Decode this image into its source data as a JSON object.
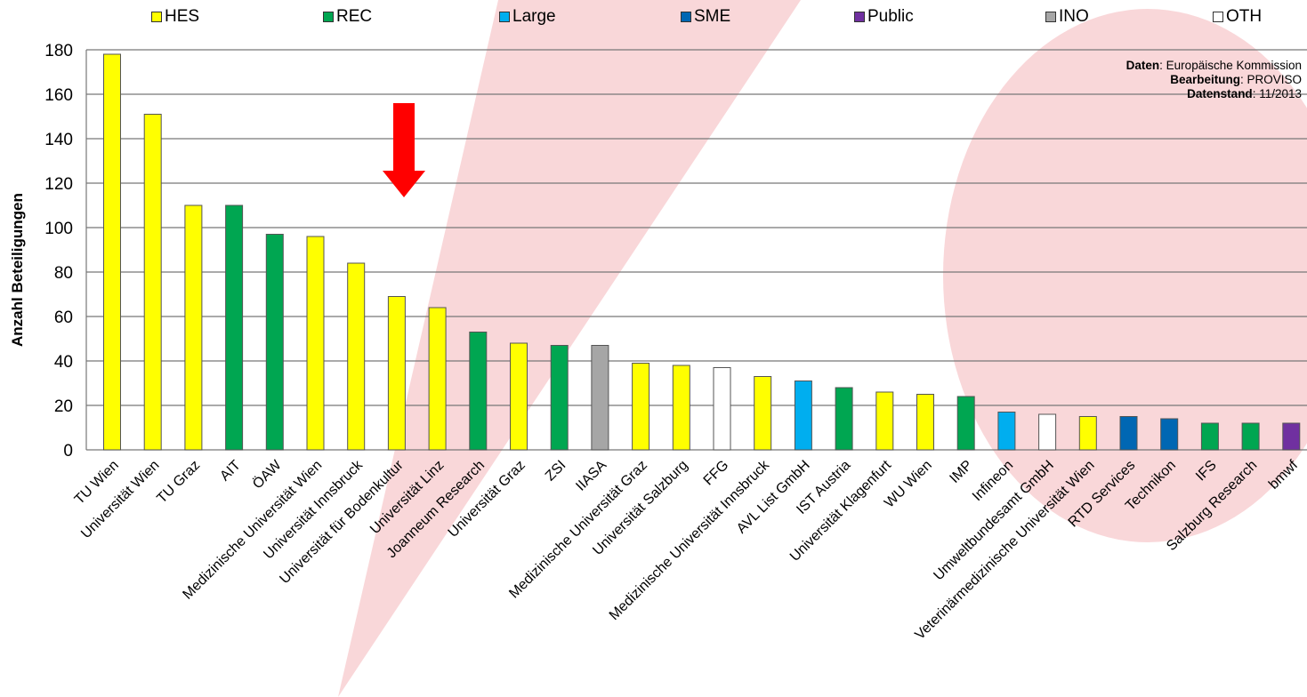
{
  "colors": {
    "HES": "#ffff00",
    "REC": "#00a651",
    "Large": "#00aeef",
    "SME": "#0067b3",
    "Public": "#7030a0",
    "INO": "#a6a6a6",
    "OTH": "#ffffff",
    "arrow": "#ff0000",
    "background_shape": "#f9d7d9"
  },
  "legend": [
    {
      "key": "HES",
      "label": "HES"
    },
    {
      "key": "REC",
      "label": "REC"
    },
    {
      "key": "Large",
      "label": "Large"
    },
    {
      "key": "SME",
      "label": "SME"
    },
    {
      "key": "Public",
      "label": "Public"
    },
    {
      "key": "INO",
      "label": "INO"
    },
    {
      "key": "OTH",
      "label": "OTH"
    }
  ],
  "source": {
    "data_label": "Daten",
    "data_value": ": Europäische Kommission",
    "edit_label": "Bearbeitung",
    "edit_value": ": PROVISO",
    "date_label": "Datenstand",
    "date_value": ": 11/2013"
  },
  "chart_data": {
    "type": "bar",
    "title": "",
    "xlabel": "",
    "ylabel": "Anzahl Beteiligungen",
    "ylim": [
      0,
      180
    ],
    "yticks": [
      0,
      20,
      40,
      60,
      80,
      100,
      120,
      140,
      160,
      180
    ],
    "grid": true,
    "legend_position": "top",
    "categories": [
      "TU Wien",
      "Universität Wien",
      "TU Graz",
      "AIT",
      "ÖAW",
      "Medizinische Universität Wien",
      "Universität Innsbruck",
      "Universität für Bodenkultur",
      "Universität Linz",
      "Joanneum Research",
      "Universität Graz",
      "ZSI",
      "IIASA",
      "Medizinische Universität Graz",
      "Universität Salzburg",
      "FFG",
      "Medizinische Universität Innsbruck",
      "AVL List GmbH",
      "IST Austria",
      "Universität Klagenfurt",
      "WU Wien",
      "IMP",
      "Infineon",
      "Umweltbundesamt GmbH",
      "Veterinärmedizinische Universität Wien",
      "RTD Services",
      "Technikon",
      "IFS",
      "Salzburg Research",
      "bmwf"
    ],
    "values": [
      178,
      151,
      110,
      110,
      97,
      96,
      84,
      69,
      64,
      53,
      48,
      47,
      47,
      39,
      38,
      37,
      33,
      31,
      28,
      26,
      25,
      24,
      17,
      16,
      15,
      15,
      14,
      12,
      12,
      12
    ],
    "types": [
      "HES",
      "HES",
      "HES",
      "REC",
      "REC",
      "HES",
      "HES",
      "HES",
      "HES",
      "REC",
      "HES",
      "REC",
      "INO",
      "HES",
      "HES",
      "OTH",
      "HES",
      "Large",
      "REC",
      "HES",
      "HES",
      "REC",
      "Large",
      "OTH",
      "HES",
      "SME",
      "SME",
      "REC",
      "REC",
      "Public"
    ],
    "highlight_index": 7
  }
}
